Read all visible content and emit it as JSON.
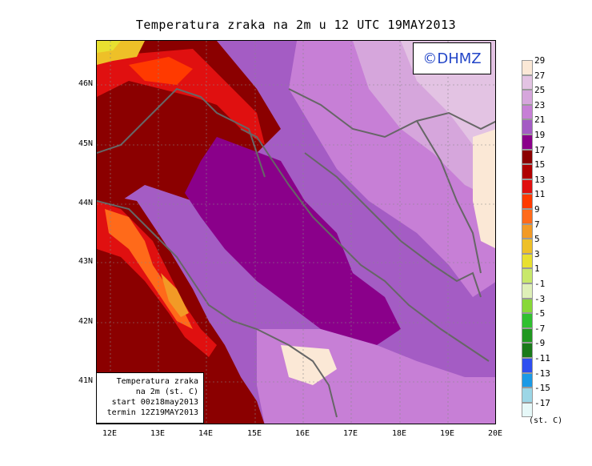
{
  "title": "Temperatura zraka na 2m u 12 UTC 19MAY2013",
  "copyright": "©DHMZ",
  "info_box": {
    "line1": "Temperatura zraka",
    "line2": "na 2m (st. C)",
    "line3": "start 00z18may2013",
    "line4": "termin 12Z19MAY2013"
  },
  "y_ticks": [
    "46N",
    "45N",
    "44N",
    "43N",
    "42N",
    "41N"
  ],
  "x_ticks": [
    "12E",
    "13E",
    "14E",
    "15E",
    "16E",
    "17E",
    "18E",
    "19E",
    "20E"
  ],
  "legend": {
    "labels": [
      "29",
      "27",
      "25",
      "23",
      "21",
      "19",
      "17",
      "15",
      "13",
      "11",
      "9",
      "7",
      "5",
      "3",
      "1",
      "-1",
      "-3",
      "-5",
      "-7",
      "-9",
      "-11",
      "-13",
      "-15",
      "-17"
    ],
    "colors": [
      "#fbe8d6",
      "#e3c3e3",
      "#d6a6dc",
      "#c77fd6",
      "#a45cc4",
      "#8a008a",
      "#8b0000",
      "#b00000",
      "#e01010",
      "#ff3a00",
      "#ff6a1a",
      "#f29a26",
      "#eec028",
      "#e8e030",
      "#c8e86a",
      "#dff0b8",
      "#88d838",
      "#30c030",
      "#209820",
      "#1a7a1a",
      "#2e4ef0",
      "#1a9ae6",
      "#9cd6e6",
      "#e6f8f8"
    ],
    "unit": "(st. C)"
  }
}
